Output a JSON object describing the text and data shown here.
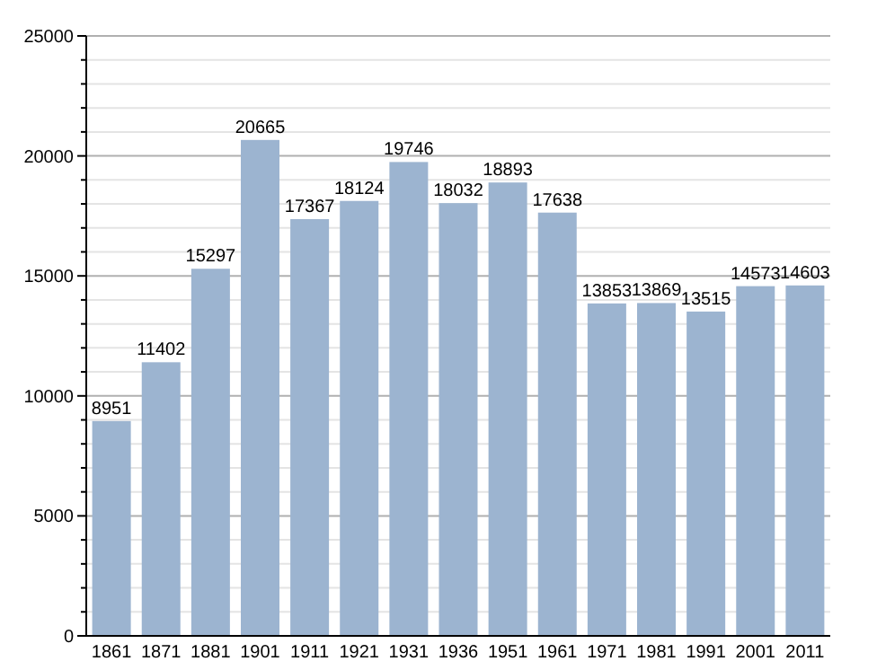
{
  "chart_data": {
    "type": "bar",
    "categories": [
      "1861",
      "1871",
      "1881",
      "1901",
      "1911",
      "1921",
      "1931",
      "1936",
      "1951",
      "1961",
      "1971",
      "1981",
      "1991",
      "2001",
      "2011"
    ],
    "values": [
      8951,
      11402,
      15297,
      20665,
      17367,
      18124,
      19746,
      18032,
      18893,
      17638,
      13853,
      13869,
      13515,
      14573,
      14603
    ],
    "color": "#9cb4d0",
    "data_labels": true,
    "grid": "y",
    "ylim": [
      0,
      25000
    ],
    "yticks": [
      0,
      {
        "value": 1000,
        "label": null
      },
      {
        "value": 2000,
        "label": null
      },
      {
        "value": 3000,
        "label": null
      },
      {
        "value": 4000,
        "label": null
      },
      5000,
      {
        "value": 6000,
        "label": null
      },
      {
        "value": 7000,
        "label": null
      },
      {
        "value": 8000,
        "label": null
      },
      {
        "value": 9000,
        "label": null
      },
      10000,
      {
        "value": 11000,
        "label": null
      },
      {
        "value": 12000,
        "label": null
      },
      {
        "value": 13000,
        "label": null
      },
      {
        "value": 14000,
        "label": null
      },
      15000,
      {
        "value": 16000,
        "label": null
      },
      {
        "value": 17000,
        "label": null
      },
      {
        "value": 18000,
        "label": null
      },
      {
        "value": 19000,
        "label": null
      },
      20000,
      {
        "value": 21000,
        "label": null
      },
      {
        "value": 22000,
        "label": null
      },
      {
        "value": 23000,
        "label": null
      },
      {
        "value": 24000,
        "label": null
      },
      25000
    ]
  }
}
